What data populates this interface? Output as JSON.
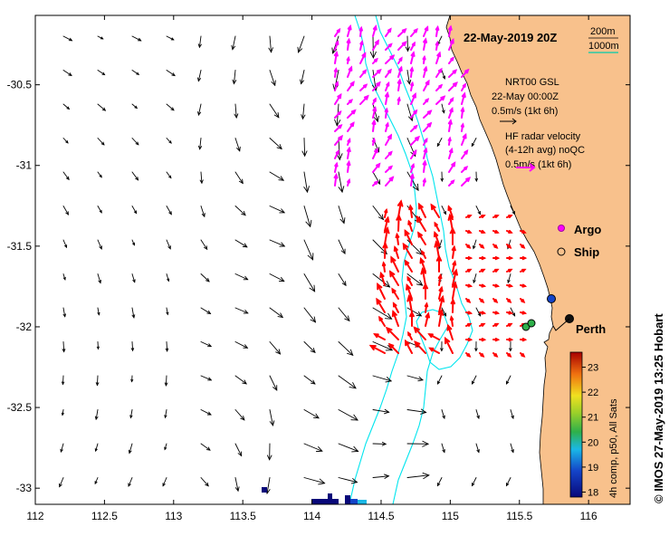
{
  "title": "22-May-2019 20Z",
  "scale": {
    "small": "200m",
    "large": "1000m"
  },
  "gsl_legend": {
    "line1": "NRT00 GSL",
    "line2": "22-May 00:00Z",
    "line3": "0.5m/s (1kt 6h)"
  },
  "hf_legend": {
    "line1": "HF radar velocity",
    "line2": "(4-12h avg) noQC",
    "line3": "0.5m/s (1kt 6h)"
  },
  "symbols": {
    "argo": "Argo",
    "ship": "Ship"
  },
  "city": "Perth",
  "credit": "© IMOS 27-May-2019 13:25 Hobart",
  "colorbar": {
    "title": "4h comp, p50, All Sats",
    "ticks": [
      "18",
      "19",
      "20",
      "21",
      "22",
      "23"
    ],
    "min": 17.8,
    "max": 23.6
  },
  "axes": {
    "x_ticks": [
      "112",
      "112.5",
      "113",
      "113.5",
      "114",
      "114.5",
      "115",
      "115.5",
      "116"
    ],
    "y_ticks": [
      "-30.5",
      "-31",
      "-31.5",
      "-32",
      "-32.5",
      "-33"
    ],
    "x_range": [
      112,
      116.3
    ],
    "y_range": [
      -33.1,
      -30.07
    ]
  },
  "colors": {
    "land": "#f8c18c",
    "isobath": "#00e5ee",
    "hf_north": "#ff00ff",
    "hf_south": "#ff0000",
    "argo_fill": "#ff00ff",
    "scale_line": "#00ccaa"
  }
}
